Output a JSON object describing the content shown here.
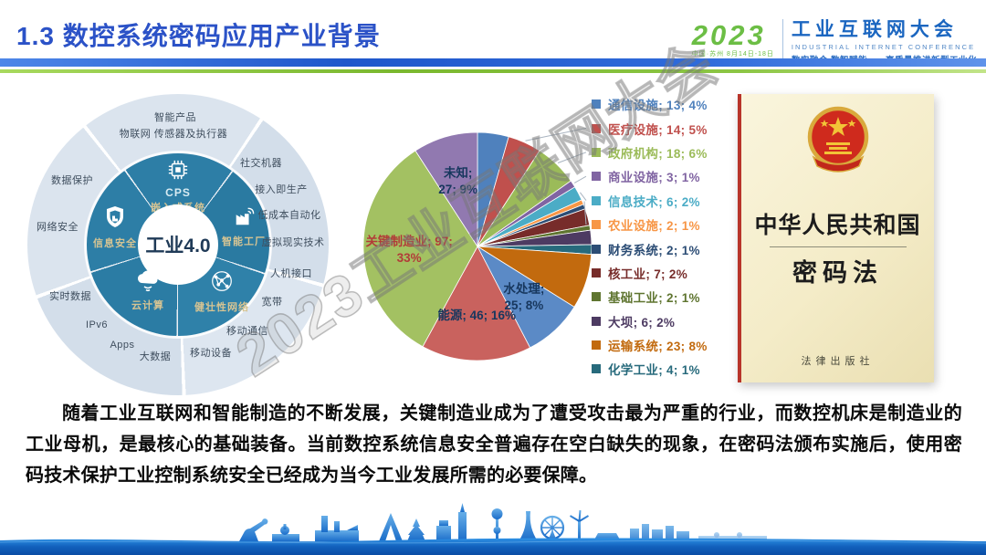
{
  "header": {
    "title": "1.3 数控系统密码应用产业背景",
    "logo": {
      "year": "2023",
      "sub": "中国·苏州 8月14日-18日",
      "name": "工业互联网大会",
      "name_en": "INDUSTRIAL INTERNET CONFERENCE",
      "slogan": "数实融合 数智赋能——高质量推进新型工业化"
    }
  },
  "industry40": {
    "center": "工业4.0",
    "inner_ring": [
      {
        "label": "CPS",
        "label2": "嵌入式系统",
        "icon": "chip-icon"
      },
      {
        "label": "智能工厂",
        "icon": "factory-icon"
      },
      {
        "label": "健壮性网络",
        "icon": "network-icon"
      },
      {
        "label": "云计算",
        "icon": "cloud-icon"
      },
      {
        "label": "信息安全",
        "icon": "shield-icon"
      }
    ],
    "outer_labels": [
      "智能产品",
      "物联网 传感器及执行器",
      "社交机器",
      "接入即生产",
      "低成本自动化",
      "虚拟现实技术",
      "人机接口",
      "宽带",
      "移动通信",
      "移动设备",
      "大数据",
      "Apps",
      "IPv6",
      "实时数据",
      "网络安全",
      "数据保护"
    ]
  },
  "chart_data": {
    "type": "pie",
    "title": "",
    "total": 295,
    "value_format": "label; count; percent",
    "slices": [
      {
        "label": "通信设施",
        "value": 13,
        "pct": "4%",
        "color": "#4F81BD"
      },
      {
        "label": "医疗设施",
        "value": 14,
        "pct": "5%",
        "color": "#C0504D",
        "leader": true
      },
      {
        "label": "政府机构",
        "value": 18,
        "pct": "6%",
        "color": "#9BBB59",
        "leader": true
      },
      {
        "label": "商业设施",
        "value": 3,
        "pct": "1%",
        "color": "#8064A2",
        "leader": true
      },
      {
        "label": "信息技术",
        "value": 6,
        "pct": "2%",
        "color": "#4BACC6",
        "leader": true
      },
      {
        "label": "农业设施",
        "value": 2,
        "pct": "1%",
        "color": "#F79646",
        "leader": true
      },
      {
        "label": "财务系统",
        "value": 2,
        "pct": "1%",
        "color": "#2C4D75"
      },
      {
        "label": "核工业",
        "value": 7,
        "pct": "2%",
        "color": "#772C2A"
      },
      {
        "label": "基础工业",
        "value": 2,
        "pct": "1%",
        "color": "#5F7530"
      },
      {
        "label": "大坝",
        "value": 6,
        "pct": "2%",
        "color": "#4D3B62"
      },
      {
        "label": "化学工业",
        "value": 4,
        "pct": "1%",
        "color": "#276A7C"
      },
      {
        "label": "运输系统",
        "value": 23,
        "pct": "8%",
        "color": "#C26A0E"
      },
      {
        "label": "水处理",
        "value": 25,
        "pct": "8%",
        "color": "#5B8AC6",
        "pie_label": [
          "水处理;",
          "25; 8%"
        ],
        "label_color": "#17375E"
      },
      {
        "label": "能源",
        "value": 46,
        "pct": "16%",
        "color": "#C9625E",
        "pie_label": [
          "能源; 46; 16%"
        ],
        "label_color": "#17375E"
      },
      {
        "label": "关键制造业",
        "value": 97,
        "pct": "33%",
        "color": "#A3C162",
        "pie_label": [
          "关键制造业; 97;",
          "33%"
        ],
        "label_color": "#B23B38"
      },
      {
        "label": "未知",
        "value": 27,
        "pct": "9%",
        "color": "#9179B0",
        "pie_label": [
          "未知;",
          "27; 9%"
        ],
        "label_color": "#17375E"
      }
    ],
    "legend": [
      {
        "label": "通信设施",
        "value": 13,
        "pct": "4%",
        "color": "#4F81BD"
      },
      {
        "label": "医疗设施",
        "value": 14,
        "pct": "5%",
        "color": "#C0504D"
      },
      {
        "label": "政府机构",
        "value": 18,
        "pct": "6%",
        "color": "#9BBB59"
      },
      {
        "label": "商业设施",
        "value": 3,
        "pct": "1%",
        "color": "#8064A2"
      },
      {
        "label": "信息技术",
        "value": 6,
        "pct": "2%",
        "color": "#4BACC6"
      },
      {
        "label": "农业设施",
        "value": 2,
        "pct": "1%",
        "color": "#F79646"
      },
      {
        "label": "财务系统",
        "value": 2,
        "pct": "1%",
        "color": "#2C4D75"
      },
      {
        "label": "核工业",
        "value": 7,
        "pct": "2%",
        "color": "#772C2A"
      },
      {
        "label": "基础工业",
        "value": 2,
        "pct": "1%",
        "color": "#5F7530"
      },
      {
        "label": "大坝",
        "value": 6,
        "pct": "2%",
        "color": "#4D3B62"
      },
      {
        "label": "运输系统",
        "value": 23,
        "pct": "8%",
        "color": "#C26A0E"
      },
      {
        "label": "化学工业",
        "value": 4,
        "pct": "1%",
        "color": "#276A7C"
      }
    ],
    "legend_position": "right",
    "grid": false
  },
  "book": {
    "country": "中华人民共和国",
    "law": "密码法",
    "publisher": "法律出版社"
  },
  "paragraph": "随着工业互联网和智能制造的不断发展，关键制造业成为了遭受攻击最为严重的行业，而数控机床是制造业的工业母机，是最核心的基础装备。当前数控系统信息安全普遍存在空白缺失的现象，在密码法颁布实施后，使用密码技术保护工业控制系统安全已经成为当今工业发展所需的必要保障。",
  "watermark": "2023工业互联网大会"
}
